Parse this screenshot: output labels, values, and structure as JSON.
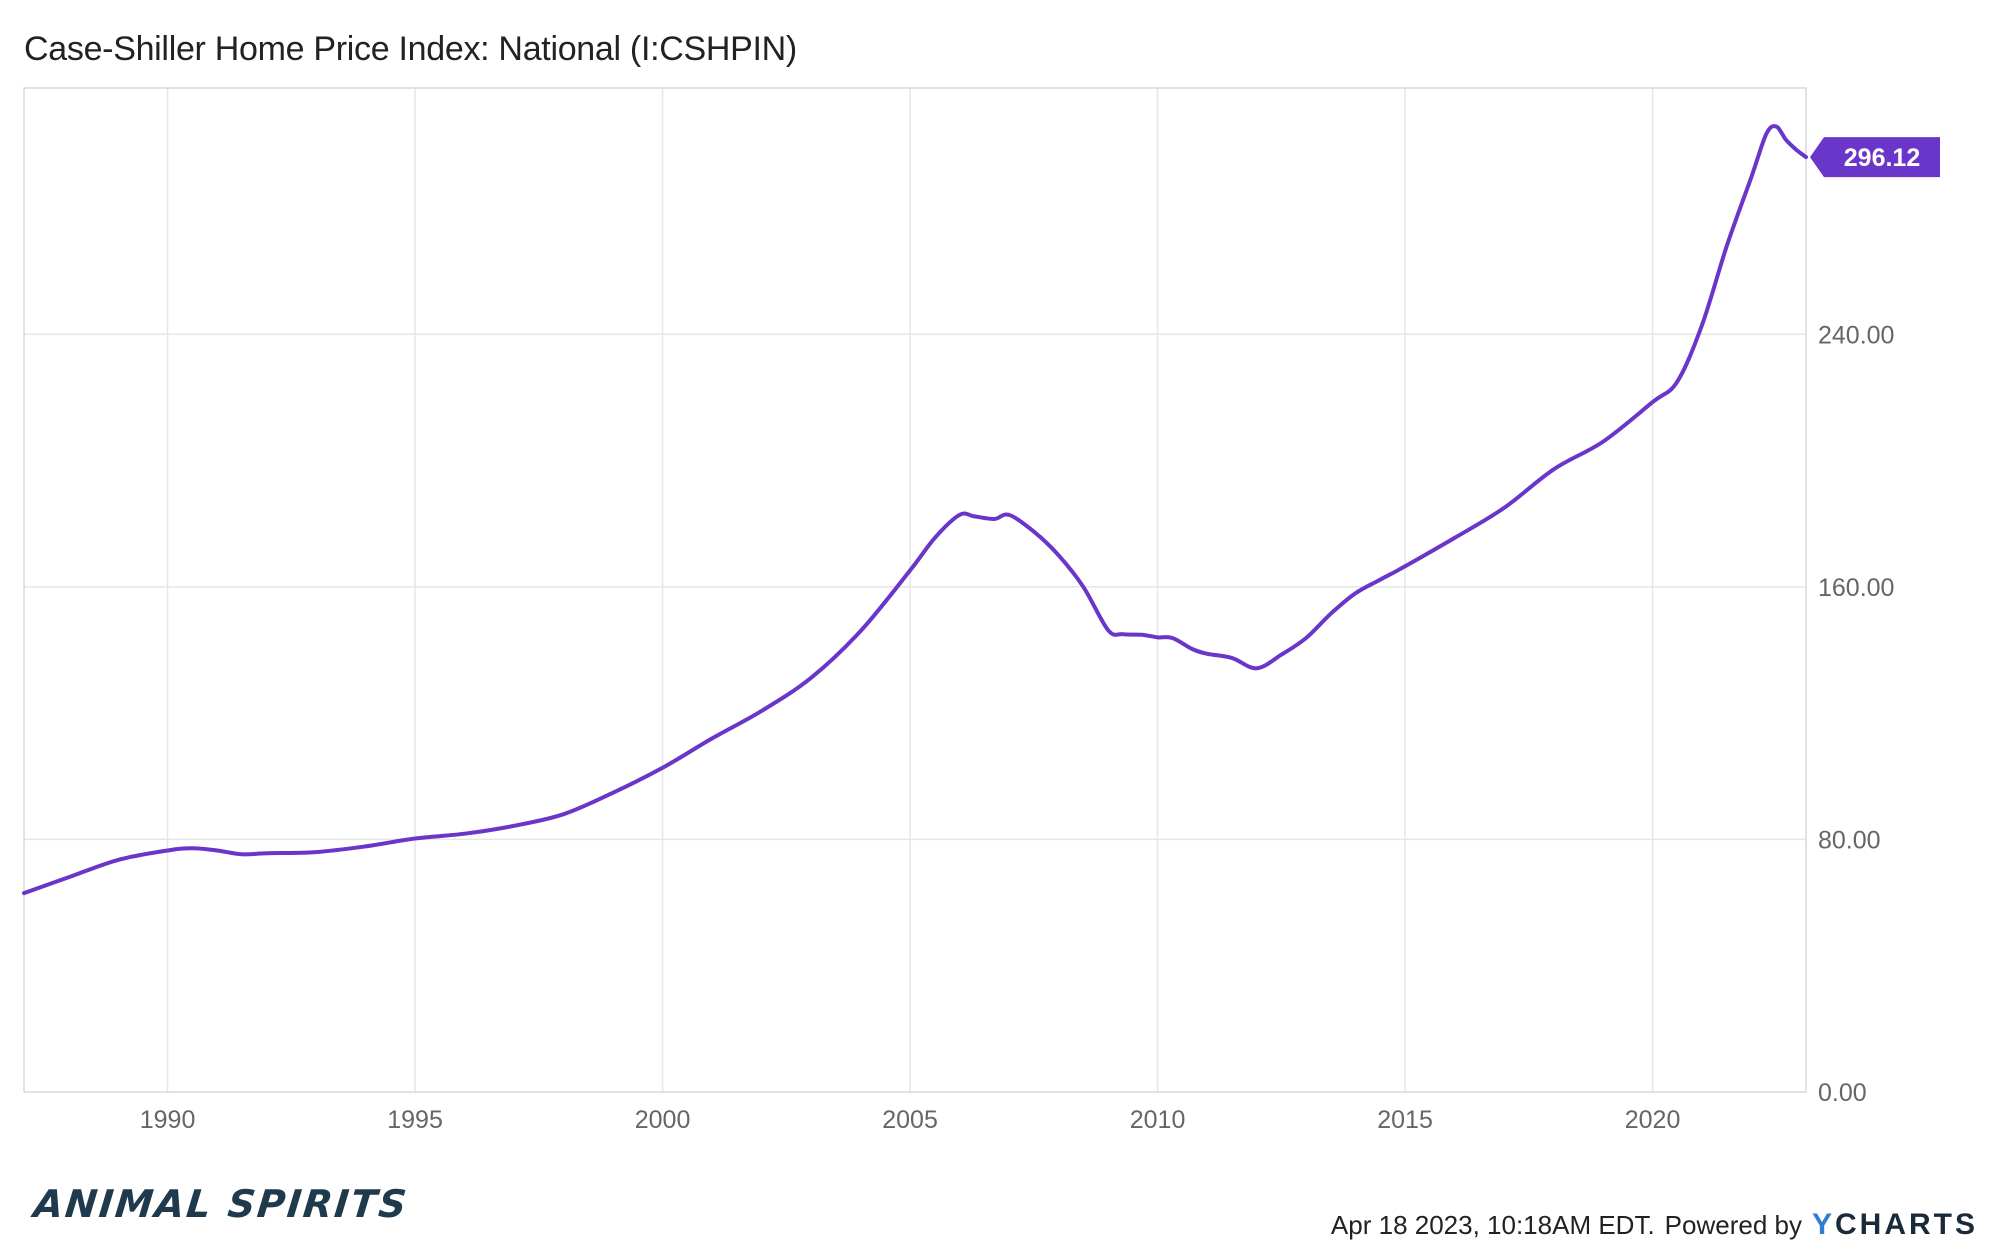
{
  "title": "Case-Shiller Home Price Index: National (I:CSHPIN)",
  "brand_text": "ANIMAL SPIRITS",
  "footer": {
    "timestamp": "Apr 18 2023, 10:18AM EDT.",
    "powered_by": "Powered by",
    "logo_y": "Y",
    "logo_rest": "CHARTS"
  },
  "colors": {
    "line": "#6a35c9",
    "grid": "#e6e6e6",
    "badge": "#6a35c9",
    "axis_text": "#666666"
  },
  "chart_data": {
    "type": "line",
    "title": "Case-Shiller Home Price Index: National (I:CSHPIN)",
    "xlabel": "",
    "ylabel": "",
    "xlim": [
      1987.1,
      2023.1
    ],
    "ylim": [
      0,
      318
    ],
    "x_ticks": [
      1990,
      1995,
      2000,
      2005,
      2010,
      2015,
      2020
    ],
    "y_ticks": [
      0,
      80,
      160,
      240
    ],
    "y_tick_labels": [
      "0.00",
      "80.00",
      "160.00",
      "240.00"
    ],
    "grid": true,
    "last_value_label": "296.12",
    "series": [
      {
        "x": [
          1987.1,
          1988.0,
          1989.0,
          1990.0,
          1990.5,
          1991.0,
          1991.5,
          1992.0,
          1993.0,
          1994.0,
          1995.0,
          1996.0,
          1997.0,
          1998.0,
          1999.0,
          2000.0,
          2001.0,
          2002.0,
          2003.0,
          2004.0,
          2005.0,
          2005.5,
          2006.0,
          2006.3,
          2006.7,
          2007.0,
          2007.5,
          2008.0,
          2008.5,
          2009.0,
          2009.3,
          2009.7,
          2010.0,
          2010.3,
          2010.7,
          2011.0,
          2011.5,
          2012.0,
          2012.5,
          2013.0,
          2013.5,
          2014.0,
          2014.5,
          2015.0,
          2016.0,
          2017.0,
          2018.0,
          2019.0,
          2020.0,
          2020.5,
          2021.0,
          2021.5,
          2022.0,
          2022.3,
          2022.5,
          2022.7,
          2022.9,
          2023.1
        ],
        "y": [
          63.0,
          68.0,
          73.5,
          76.5,
          77.2,
          76.5,
          75.3,
          75.6,
          76.0,
          77.8,
          80.3,
          81.8,
          84.3,
          88.0,
          94.8,
          102.7,
          112.0,
          120.7,
          131.2,
          146.0,
          165.2,
          175.5,
          182.8,
          182.3,
          181.5,
          182.8,
          177.5,
          170.0,
          160.0,
          146.3,
          145.0,
          144.8,
          144.0,
          143.8,
          140.3,
          138.8,
          137.5,
          134.2,
          138.5,
          143.8,
          151.5,
          158.0,
          162.3,
          166.5,
          175.5,
          185.0,
          197.2,
          206.0,
          218.5,
          225.0,
          243.0,
          268.0,
          290.0,
          303.5,
          305.8,
          301.5,
          298.5,
          296.1
        ]
      }
    ]
  }
}
